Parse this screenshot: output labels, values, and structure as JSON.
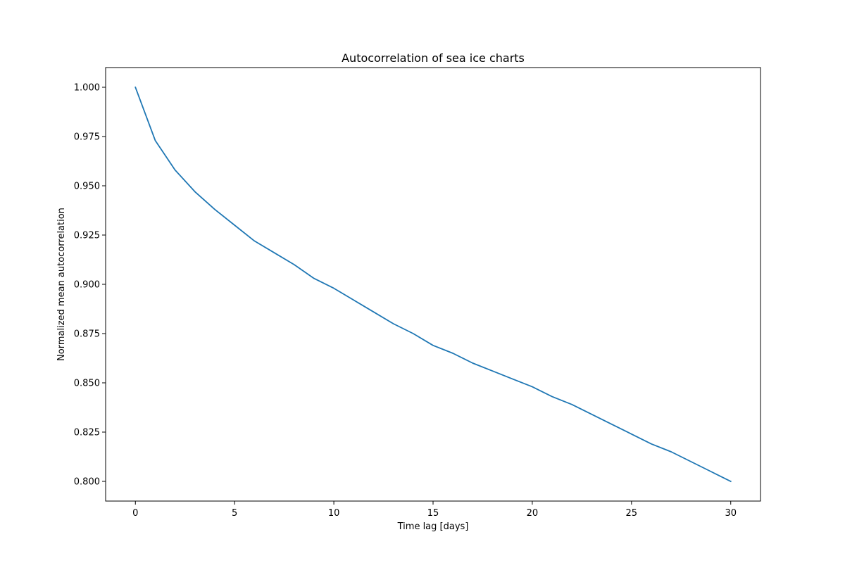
{
  "chart_data": {
    "type": "line",
    "title": "Autocorrelation of sea ice charts",
    "xlabel": "Time lag [days]",
    "ylabel": "Normalized mean autocorrelation",
    "xlim": [
      -1.5,
      31.5
    ],
    "ylim": [
      0.79,
      1.01
    ],
    "x_ticks": [
      0,
      5,
      10,
      15,
      20,
      25,
      30
    ],
    "x_tick_labels": [
      "0",
      "5",
      "10",
      "15",
      "20",
      "25",
      "30"
    ],
    "y_ticks": [
      0.8,
      0.825,
      0.85,
      0.875,
      0.9,
      0.925,
      0.95,
      0.975,
      1.0
    ],
    "y_tick_labels": [
      "0.800",
      "0.825",
      "0.850",
      "0.875",
      "0.900",
      "0.925",
      "0.950",
      "0.975",
      "1.000"
    ],
    "grid": false,
    "line_color": "#1f77b4",
    "series": [
      {
        "x": [
          0,
          1,
          2,
          3,
          4,
          5,
          6,
          7,
          8,
          9,
          10,
          11,
          12,
          13,
          14,
          15,
          16,
          17,
          18,
          19,
          20,
          21,
          22,
          23,
          24,
          25,
          26,
          27,
          28,
          29,
          30
        ],
        "y": [
          1.0,
          0.973,
          0.958,
          0.947,
          0.938,
          0.93,
          0.922,
          0.916,
          0.91,
          0.903,
          0.898,
          0.892,
          0.886,
          0.88,
          0.875,
          0.869,
          0.865,
          0.86,
          0.856,
          0.852,
          0.848,
          0.843,
          0.839,
          0.834,
          0.829,
          0.824,
          0.819,
          0.815,
          0.81,
          0.805,
          0.8
        ]
      }
    ]
  }
}
